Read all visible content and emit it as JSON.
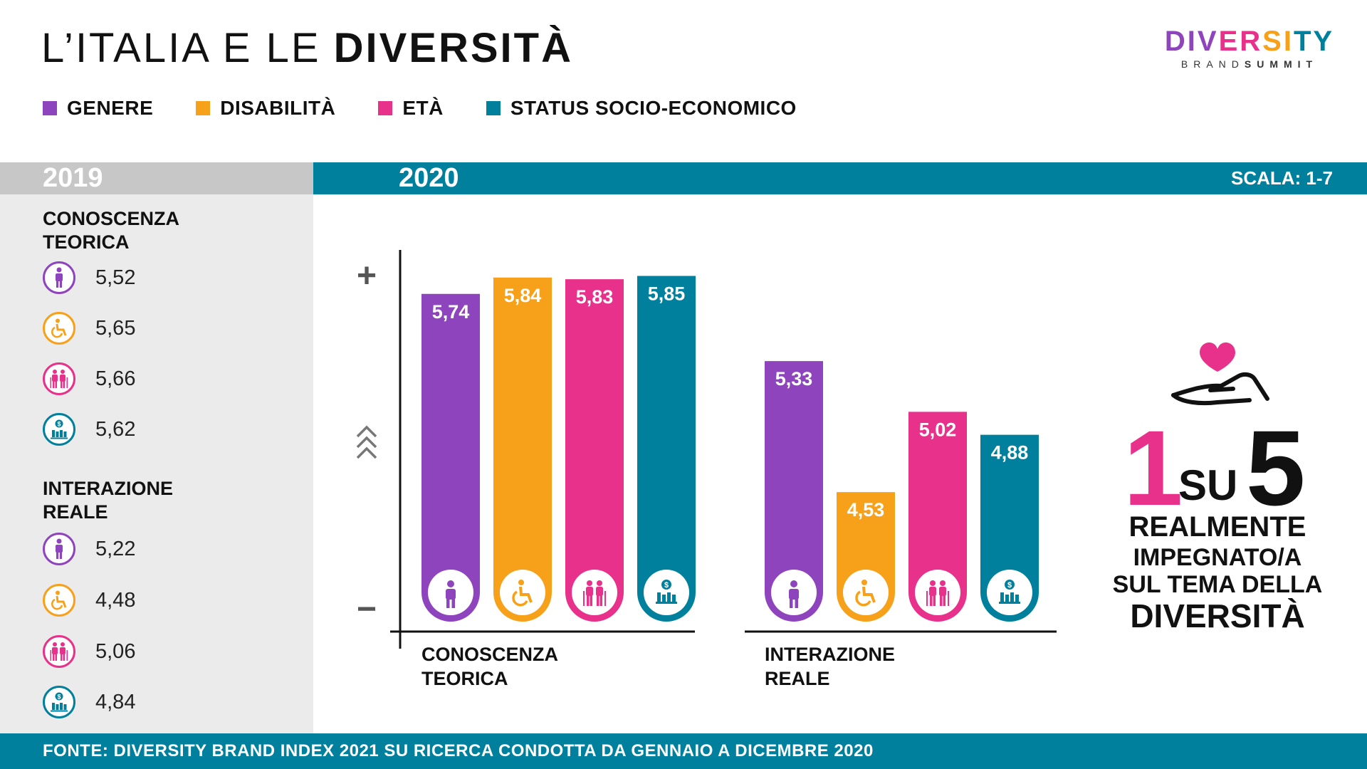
{
  "header": {
    "title_light": "L’ITALIA E LE",
    "title_bold": "DIVERSITÀ",
    "logo_wordmark": "DIVERSITY",
    "logo_sub_a": "BRAND",
    "logo_sub_b": "SUMMIT"
  },
  "legend": [
    {
      "label": "GENERE",
      "color": "#8e44bd"
    },
    {
      "label": "DISABILITÀ",
      "color": "#f7a11a"
    },
    {
      "label": "ETÀ",
      "color": "#e8318a"
    },
    {
      "label": "STATUS SOCIO-ECONOMICO",
      "color": "#00809d"
    }
  ],
  "year_2019": "2019",
  "year_2020": "2020",
  "scale_label": "SCALA: 1-7",
  "panel_2019": {
    "sections": [
      {
        "title": "CONOSCENZA\nTEORICA",
        "rows": [
          {
            "icon": "person-icon",
            "value": "5,52",
            "color": "#8e44bd"
          },
          {
            "icon": "wheelchair-icon",
            "value": "5,65",
            "color": "#f7a11a"
          },
          {
            "icon": "elderly-couple-icon",
            "value": "5,66",
            "color": "#e8318a"
          },
          {
            "icon": "money-chart-icon",
            "value": "5,62",
            "color": "#00809d"
          }
        ]
      },
      {
        "title": "INTERAZIONE\nREALE",
        "rows": [
          {
            "icon": "person-icon",
            "value": "5,22",
            "color": "#8e44bd"
          },
          {
            "icon": "wheelchair-icon",
            "value": "4,48",
            "color": "#f7a11a"
          },
          {
            "icon": "elderly-couple-icon",
            "value": "5,06",
            "color": "#e8318a"
          },
          {
            "icon": "money-chart-icon",
            "value": "4,84",
            "color": "#00809d"
          }
        ]
      }
    ]
  },
  "chart_data": {
    "type": "bar",
    "title": "",
    "scale": "1-7",
    "axis_marks": {
      "top": "+",
      "bottom": "−"
    },
    "groups": [
      "CONOSCENZA\nTEORICA",
      "INTERAZIONE\nREALE"
    ],
    "series": [
      {
        "name": "GENERE",
        "color": "#8e44bd",
        "icon": "person-icon",
        "values": [
          5.74,
          5.33
        ],
        "labels": [
          "5,74",
          "5,33"
        ]
      },
      {
        "name": "DISABILITÀ",
        "color": "#f7a11a",
        "icon": "wheelchair-icon",
        "values": [
          5.84,
          4.53
        ],
        "labels": [
          "5,84",
          "4,53"
        ]
      },
      {
        "name": "ETÀ",
        "color": "#e8318a",
        "icon": "elderly-couple-icon",
        "values": [
          5.83,
          5.02
        ],
        "labels": [
          "5,83",
          "5,02"
        ]
      },
      {
        "name": "STATUS SOCIO-ECONOMICO",
        "color": "#00809d",
        "icon": "money-chart-icon",
        "values": [
          5.85,
          4.88
        ],
        "labels": [
          "5,85",
          "4,88"
        ]
      }
    ]
  },
  "callout": {
    "num_one": "1",
    "su": "SU",
    "num_five": "5",
    "line1": "REALMENTE",
    "line2": "IMPEGNATO/A",
    "line3": "SUL TEMA DELLA",
    "line4": "DIVERSITÀ",
    "icon": "heart-hand-icon"
  },
  "footer": {
    "source": "FONTE: DIVERSITY BRAND INDEX 2021 SU RICERCA CONDOTTA DA GENNAIO A DICEMBRE 2020"
  }
}
